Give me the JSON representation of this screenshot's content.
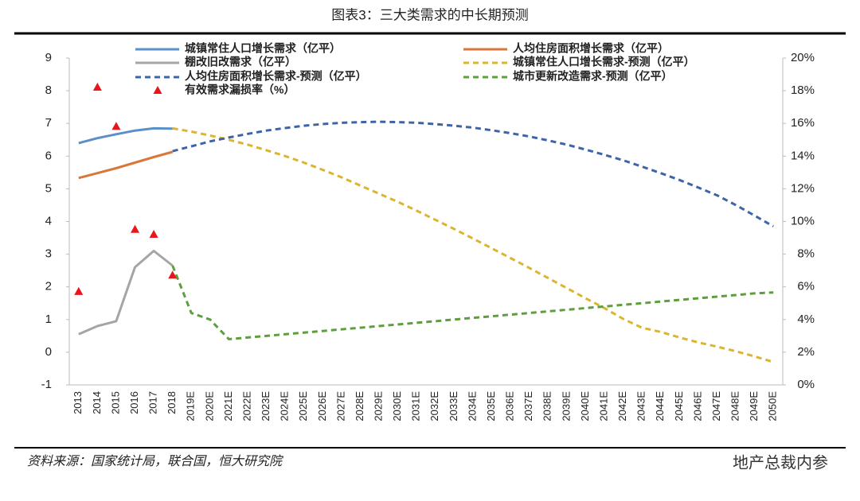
{
  "chart_data": {
    "type": "line",
    "title": "图表3：三大类需求的中长期预测",
    "source": "资料来源：国家统计局，联合国，恒大研究院",
    "watermark": "地产总裁内参",
    "categories": [
      "2013",
      "2014",
      "2015",
      "2016",
      "2017",
      "2018",
      "2019E",
      "2020E",
      "2021E",
      "2022E",
      "2023E",
      "2024E",
      "2025E",
      "2026E",
      "2027E",
      "2028E",
      "2029E",
      "2030E",
      "2031E",
      "2032E",
      "2033E",
      "2034E",
      "2035E",
      "2036E",
      "2037E",
      "2038E",
      "2039E",
      "2040E",
      "2041E",
      "2042E",
      "2043E",
      "2044E",
      "2045E",
      "2046E",
      "2047E",
      "2048E",
      "2049E",
      "2050E"
    ],
    "ylim": [
      -1,
      9
    ],
    "yticks": [
      -1,
      0,
      1,
      2,
      3,
      4,
      5,
      6,
      7,
      8,
      9
    ],
    "y2lim": [
      0,
      20
    ],
    "y2ticks": [
      {
        "value": 0,
        "label": "0%"
      },
      {
        "value": 2,
        "label": "2%"
      },
      {
        "value": 4,
        "label": "4%"
      },
      {
        "value": 6,
        "label": "6%"
      },
      {
        "value": 8,
        "label": "8%"
      },
      {
        "value": 10,
        "label": "10%"
      },
      {
        "value": 12,
        "label": "12%"
      },
      {
        "value": 14,
        "label": "14%"
      },
      {
        "value": 16,
        "label": "16%"
      },
      {
        "value": 18,
        "label": "18%"
      },
      {
        "value": 20,
        "label": "20%"
      }
    ],
    "series": [
      {
        "name": "城镇常住人口增长需求（亿平）",
        "color": "#5b8fc7",
        "style": "solid",
        "values": [
          6.4,
          6.55,
          6.67,
          6.78,
          6.85,
          6.84,
          null,
          null,
          null,
          null,
          null,
          null,
          null,
          null,
          null,
          null,
          null,
          null,
          null,
          null,
          null,
          null,
          null,
          null,
          null,
          null,
          null,
          null,
          null,
          null,
          null,
          null,
          null,
          null,
          null,
          null,
          null,
          null
        ]
      },
      {
        "name": "人均住房面积增长需求（亿平）",
        "color": "#d9773a",
        "style": "solid",
        "values": [
          5.33,
          5.48,
          5.63,
          5.8,
          5.97,
          6.13,
          null,
          null,
          null,
          null,
          null,
          null,
          null,
          null,
          null,
          null,
          null,
          null,
          null,
          null,
          null,
          null,
          null,
          null,
          null,
          null,
          null,
          null,
          null,
          null,
          null,
          null,
          null,
          null,
          null,
          null,
          null,
          null
        ]
      },
      {
        "name": "棚改旧改需求（亿平）",
        "color": "#a5a5a5",
        "style": "solid",
        "values": [
          0.55,
          0.8,
          0.95,
          2.6,
          3.1,
          2.65,
          null,
          null,
          null,
          null,
          null,
          null,
          null,
          null,
          null,
          null,
          null,
          null,
          null,
          null,
          null,
          null,
          null,
          null,
          null,
          null,
          null,
          null,
          null,
          null,
          null,
          null,
          null,
          null,
          null,
          null,
          null,
          null
        ]
      },
      {
        "name": "城镇常住人口增长需求-预测（亿平）",
        "color": "#dbb530",
        "style": "dash",
        "values": [
          null,
          null,
          null,
          null,
          null,
          6.85,
          6.75,
          6.63,
          6.5,
          6.35,
          6.18,
          6.0,
          5.8,
          5.58,
          5.35,
          5.1,
          4.85,
          4.6,
          4.33,
          4.05,
          3.77,
          3.48,
          3.18,
          2.88,
          2.58,
          2.27,
          1.96,
          1.65,
          1.35,
          1.02,
          0.75,
          0.62,
          0.45,
          0.3,
          0.17,
          0.03,
          -0.13,
          -0.3
        ]
      },
      {
        "name": "人均住房面积增长需求-预测（亿平）",
        "color": "#3e64a8",
        "style": "dash",
        "values": [
          null,
          null,
          null,
          null,
          null,
          6.15,
          6.3,
          6.45,
          6.57,
          6.68,
          6.78,
          6.86,
          6.93,
          6.98,
          7.02,
          7.04,
          7.05,
          7.04,
          7.02,
          6.98,
          6.93,
          6.87,
          6.79,
          6.7,
          6.6,
          6.48,
          6.35,
          6.2,
          6.04,
          5.87,
          5.68,
          5.48,
          5.27,
          5.04,
          4.8,
          4.5,
          4.18,
          3.85
        ]
      },
      {
        "name": "城市更新改造需求-预测（亿平）",
        "color": "#5f9e3c",
        "style": "dash",
        "values": [
          null,
          null,
          null,
          null,
          null,
          2.65,
          1.2,
          1.0,
          0.4,
          0.45,
          0.5,
          0.55,
          0.6,
          0.65,
          0.7,
          0.75,
          0.8,
          0.85,
          0.9,
          0.95,
          1.0,
          1.05,
          1.1,
          1.15,
          1.2,
          1.25,
          1.3,
          1.35,
          1.4,
          1.45,
          1.5,
          1.55,
          1.6,
          1.65,
          1.7,
          1.75,
          1.8,
          1.83
        ]
      },
      {
        "name": "有效需求漏损率（%）",
        "color": "#e8161b",
        "style": "marker",
        "axis": "y2",
        "values": [
          5.7,
          18.2,
          15.8,
          9.5,
          9.2,
          6.7,
          null,
          null,
          null,
          null,
          null,
          null,
          null,
          null,
          null,
          null,
          null,
          null,
          null,
          null,
          null,
          null,
          null,
          null,
          null,
          null,
          null,
          null,
          null,
          null,
          null,
          null,
          null,
          null,
          null,
          null,
          null,
          null
        ]
      }
    ]
  }
}
